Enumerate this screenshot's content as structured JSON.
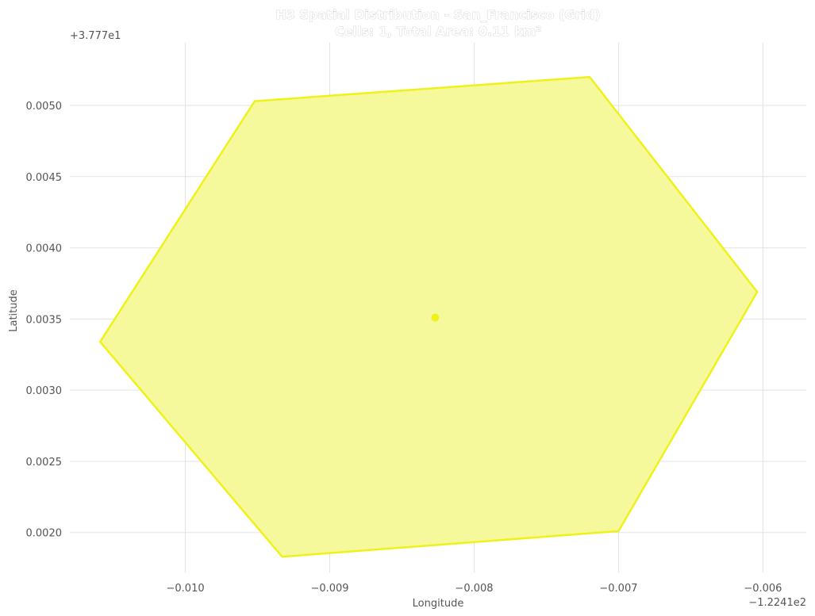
{
  "chart_data": {
    "type": "polygon",
    "title": "H3 Spatial Distribution - San_Francisco (Grid)",
    "subtitle": "Cells: 1, Total Area: 0.11 km²",
    "xlabel": "Longitude",
    "ylabel": "Latitude",
    "x_offset_label": "−1.2241e2",
    "y_offset_label": "+3.777e1",
    "xlim": [
      -0.0108,
      -0.0057
    ],
    "ylim": [
      0.00172,
      0.00544
    ],
    "xticks": [
      -0.01,
      -0.009,
      -0.008,
      -0.007,
      -0.006
    ],
    "xtick_labels": [
      "−0.010",
      "−0.009",
      "−0.008",
      "−0.007",
      "−0.006"
    ],
    "yticks": [
      0.002,
      0.0025,
      0.003,
      0.0035,
      0.004,
      0.0045,
      0.005
    ],
    "ytick_labels": [
      "0.0020",
      "0.0025",
      "0.0030",
      "0.0035",
      "0.0040",
      "0.0045",
      "0.0050"
    ],
    "grid": true,
    "fill_color": "#f5f99c",
    "edge_color": "#eef21a",
    "hexagon": [
      {
        "x": -0.00952,
        "y": 0.00503
      },
      {
        "x": -0.0072,
        "y": 0.0052
      },
      {
        "x": -0.00604,
        "y": 0.00369
      },
      {
        "x": -0.007,
        "y": 0.00201
      },
      {
        "x": -0.00933,
        "y": 0.00183
      },
      {
        "x": -0.01059,
        "y": 0.00334
      }
    ],
    "centroid": {
      "x": -0.00827,
      "y": 0.00351
    }
  }
}
